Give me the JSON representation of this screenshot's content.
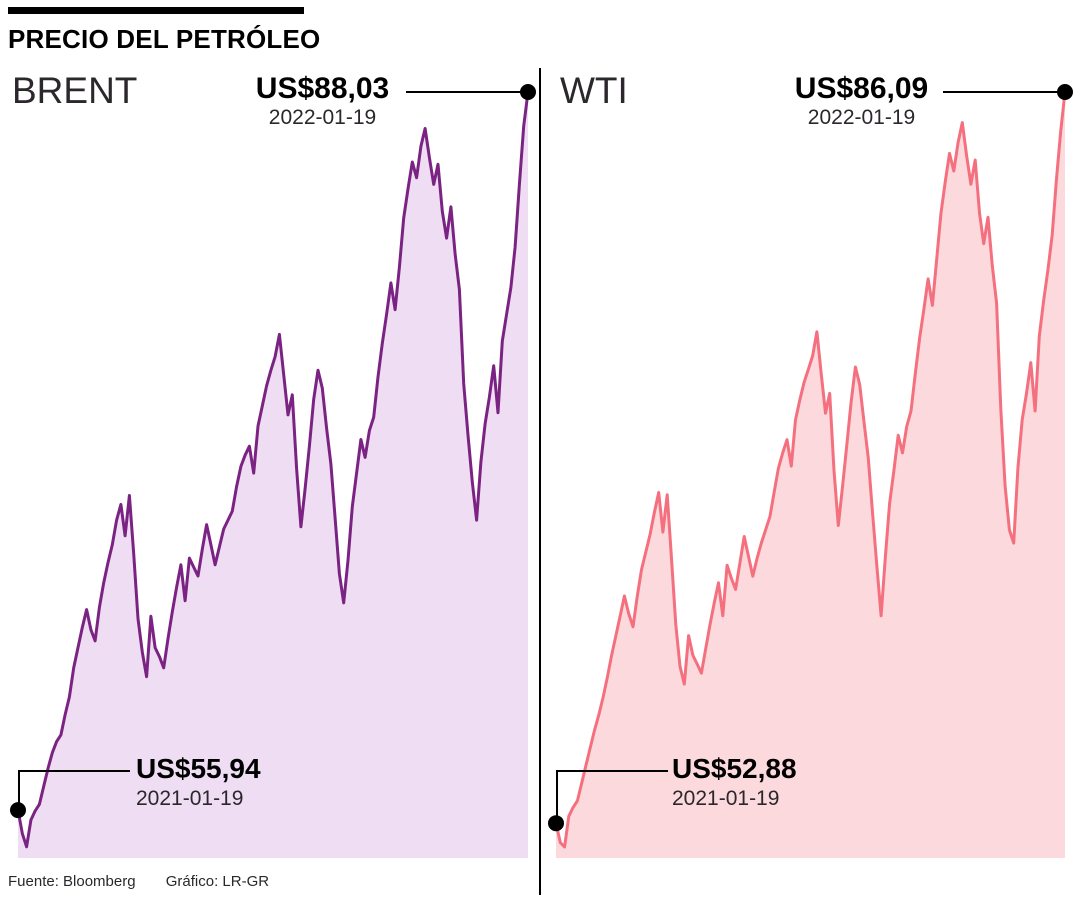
{
  "header": {
    "title": "PRECIO DEL PETRÓLEO"
  },
  "footer": {
    "source": "Fuente: Bloomberg",
    "credit": "Gráfico: LR-GR"
  },
  "chart_data": [
    {
      "type": "area",
      "name": "BRENT",
      "line_color": "#7b2382",
      "fill_color": "#eeddf3",
      "x_start": "2021-01-19",
      "x_end": "2022-01-19",
      "ylim": [
        52,
        89
      ],
      "start": {
        "label": "US$55,94",
        "date": "2021-01-19",
        "value": 55.94
      },
      "end": {
        "label": "US$88,03",
        "date": "2022-01-19",
        "value": 88.03
      },
      "values": [
        55.94,
        54.9,
        54.3,
        55.5,
        55.9,
        56.2,
        57.0,
        57.8,
        58.5,
        59.0,
        59.3,
        60.2,
        61.0,
        62.3,
        63.2,
        64.1,
        64.9,
        64.0,
        63.5,
        65.0,
        66.1,
        67.0,
        67.8,
        68.9,
        69.6,
        68.2,
        70.0,
        67.4,
        64.5,
        63.0,
        61.9,
        64.6,
        63.2,
        62.8,
        62.3,
        63.6,
        64.8,
        65.9,
        66.9,
        65.3,
        67.2,
        66.8,
        66.4,
        67.6,
        68.7,
        67.8,
        66.9,
        67.7,
        68.5,
        68.9,
        69.3,
        70.4,
        71.3,
        71.8,
        72.2,
        71.0,
        73.1,
        74.0,
        74.9,
        75.6,
        76.2,
        77.2,
        75.4,
        73.6,
        74.5,
        71.2,
        68.6,
        70.3,
        72.2,
        74.3,
        75.6,
        74.8,
        73.0,
        71.4,
        69.0,
        66.5,
        65.2,
        67.1,
        69.5,
        71.0,
        72.5,
        71.7,
        72.9,
        73.5,
        75.3,
        76.8,
        78.1,
        79.5,
        78.3,
        80.2,
        82.4,
        83.7,
        84.9,
        84.2,
        85.6,
        86.4,
        85.1,
        83.9,
        84.8,
        82.7,
        81.5,
        82.9,
        80.8,
        79.2,
        75.0,
        72.7,
        70.6,
        68.9,
        71.5,
        73.2,
        74.4,
        75.8,
        73.7,
        76.9,
        78.1,
        79.3,
        81.1,
        83.9,
        86.5,
        88.03
      ]
    },
    {
      "type": "area",
      "name": "WTI",
      "line_color": "#f4707e",
      "fill_color": "#fcd9dc",
      "x_start": "2021-01-19",
      "x_end": "2022-01-19",
      "ylim": [
        50,
        87
      ],
      "start": {
        "label": "US$52,88",
        "date": "2021-01-19",
        "value": 52.88
      },
      "end": {
        "label": "US$86,09",
        "date": "2022-01-19",
        "value": 86.09
      },
      "values": [
        52.88,
        52.0,
        51.8,
        53.2,
        53.6,
        53.9,
        54.7,
        55.5,
        56.3,
        57.1,
        57.8,
        58.6,
        59.5,
        60.5,
        61.4,
        62.3,
        63.2,
        62.4,
        61.8,
        63.2,
        64.4,
        65.2,
        66.0,
        67.0,
        67.9,
        66.1,
        67.8,
        64.9,
        61.9,
        60.0,
        59.2,
        61.4,
        60.5,
        60.1,
        59.7,
        60.8,
        61.9,
        62.9,
        63.8,
        62.3,
        64.6,
        64.0,
        63.5,
        64.7,
        65.9,
        65.0,
        64.1,
        64.9,
        65.6,
        66.2,
        66.8,
        67.9,
        69.0,
        69.7,
        70.3,
        69.1,
        71.2,
        72.1,
        72.9,
        73.5,
        74.1,
        75.2,
        73.3,
        71.5,
        72.4,
        68.9,
        66.4,
        68.2,
        70.1,
        72.0,
        73.6,
        72.8,
        71.1,
        69.5,
        67.0,
        64.6,
        62.3,
        65.0,
        67.4,
        68.9,
        70.5,
        69.7,
        70.9,
        71.6,
        73.3,
        74.9,
        76.2,
        77.6,
        76.4,
        78.5,
        80.6,
        82.0,
        83.3,
        82.5,
        83.8,
        84.7,
        83.2,
        81.9,
        83.0,
        80.6,
        79.2,
        80.4,
        78.2,
        76.5,
        71.7,
        68.2,
        66.2,
        65.6,
        69.0,
        71.2,
        72.4,
        73.8,
        71.6,
        75.0,
        76.6,
        78.0,
        79.6,
        82.1,
        84.3,
        86.09
      ]
    }
  ]
}
